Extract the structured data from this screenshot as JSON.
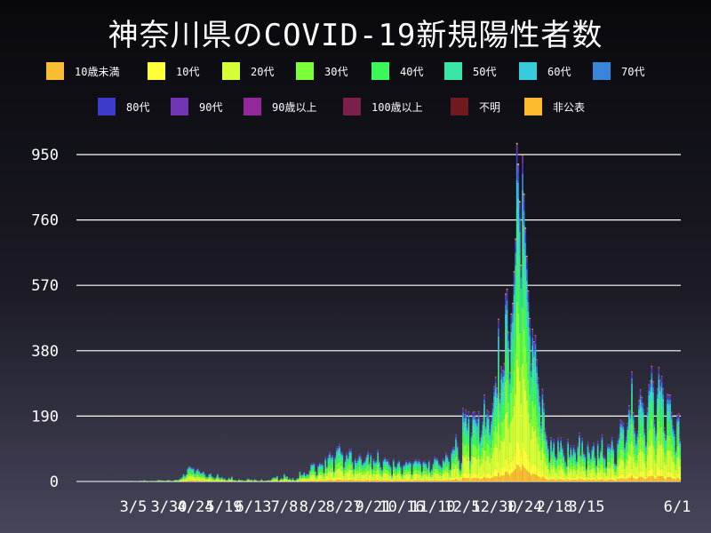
{
  "chart_data": {
    "type": "bar",
    "stacked": true,
    "title": "神奈川県のCOVID-19新規陽性者数",
    "xlabel": "",
    "ylabel": "",
    "ylim": [
      0,
      980
    ],
    "yticks": [
      0,
      190,
      380,
      570,
      760,
      950
    ],
    "grid": "horizontal",
    "legend_position": "top",
    "x_tick_labels": [
      "3/5",
      "3/30",
      "4/24",
      "5/19",
      "6/13",
      "7/8",
      "8/2",
      "8/27",
      "9/21",
      "10/16",
      "11/10",
      "12/5",
      "12/30",
      "1/24",
      "2/18",
      "3/15",
      "6/1"
    ],
    "series": [
      {
        "name": "10歳未満",
        "color": "#f9bc33"
      },
      {
        "name": "10代",
        "color": "#ffff39"
      },
      {
        "name": "20代",
        "color": "#d7ff36"
      },
      {
        "name": "30代",
        "color": "#7dfe38"
      },
      {
        "name": "40代",
        "color": "#3bf759"
      },
      {
        "name": "50代",
        "color": "#39e5a6"
      },
      {
        "name": "60代",
        "color": "#37ccdc"
      },
      {
        "name": "70代",
        "color": "#3a84dc"
      },
      {
        "name": "80代",
        "color": "#3b3ccb"
      },
      {
        "name": "90代",
        "color": "#7135b3"
      },
      {
        "name": "90歳以上",
        "color": "#912a98"
      },
      {
        "name": "100歳以上",
        "color": "#7b1f4d"
      },
      {
        "name": "不明",
        "color": "#6e1a1e"
      },
      {
        "name": "非公表",
        "color": "#fbbb2c"
      }
    ],
    "shares": [
      0.05,
      0.07,
      0.24,
      0.17,
      0.15,
      0.13,
      0.08,
      0.05,
      0.03,
      0.02,
      0.005,
      0.0,
      0.0,
      0.005
    ],
    "daily_totals": [
      0,
      0,
      0,
      0,
      0,
      0,
      0,
      0,
      0,
      0,
      0,
      0,
      0,
      0,
      0,
      0,
      0,
      0,
      0,
      0,
      0,
      0,
      0,
      0,
      0,
      0,
      0,
      0,
      0,
      0,
      0,
      0,
      0,
      0,
      0,
      0,
      0,
      0,
      0,
      0,
      1,
      1,
      1,
      1,
      2,
      3,
      1,
      4,
      3,
      2,
      1,
      1,
      1,
      2,
      1,
      2,
      2,
      5,
      4,
      4,
      3,
      3,
      2,
      3,
      5,
      4,
      2,
      1,
      3,
      5,
      6,
      4,
      7,
      10,
      14,
      23,
      17,
      22,
      40,
      46,
      43,
      40,
      40,
      26,
      34,
      39,
      32,
      26,
      27,
      30,
      22,
      15,
      14,
      22,
      25,
      16,
      13,
      9,
      15,
      23,
      13,
      11,
      14,
      9,
      10,
      5,
      6,
      12,
      8,
      15,
      5,
      5,
      4,
      0,
      7,
      4,
      5,
      3,
      3,
      2,
      8,
      8,
      5,
      6,
      1,
      7,
      5,
      0,
      2,
      1,
      7,
      2,
      1,
      3,
      3,
      5,
      3,
      7,
      12,
      13,
      12,
      17,
      2,
      7,
      11,
      8,
      23,
      15,
      16,
      7,
      10,
      5,
      11,
      5,
      4,
      10,
      10,
      31,
      20,
      21,
      28,
      18,
      24,
      22,
      34,
      52,
      53,
      55,
      32,
      20,
      48,
      55,
      52,
      53,
      27,
      70,
      45,
      75,
      87,
      74,
      77,
      32,
      75,
      98,
      103,
      109,
      89,
      84,
      44,
      64,
      84,
      72,
      95,
      94,
      61,
      39,
      68,
      58,
      67,
      80,
      72,
      53,
      58,
      63,
      77,
      88,
      56,
      82,
      39,
      67,
      59,
      62,
      93,
      62,
      44,
      36,
      65,
      71,
      64,
      64,
      53,
      46,
      20,
      66,
      47,
      43,
      57,
      62,
      46,
      23,
      49,
      51,
      61,
      54,
      60,
      58,
      23,
      57,
      63,
      65,
      59,
      64,
      56,
      30,
      60,
      59,
      55,
      42,
      63,
      31,
      38,
      55,
      72,
      69,
      67,
      54,
      49,
      44,
      67,
      63,
      84,
      77,
      64,
      38,
      90,
      100,
      101,
      137,
      109,
      68,
      36,
      58,
      213,
      195,
      208,
      167,
      203,
      66,
      142,
      202,
      203,
      190,
      181,
      204,
      125,
      145,
      185,
      253,
      171,
      209,
      203,
      151,
      187,
      226,
      277,
      305,
      273,
      473,
      256,
      334,
      324,
      344,
      546,
      560,
      435,
      318,
      488,
      519,
      611,
      706,
      984,
      924,
      815,
      630,
      952,
      837,
      738,
      656,
      555,
      475,
      342,
      444,
      407,
      425,
      355,
      301,
      246,
      173,
      269,
      226,
      154,
      130,
      103,
      62,
      129,
      97,
      122,
      79,
      70,
      128,
      96,
      127,
      103,
      81,
      63,
      48,
      123,
      77,
      105,
      83,
      105,
      92,
      63,
      109,
      142,
      82,
      126,
      87,
      78,
      38,
      114,
      91,
      71,
      100,
      113,
      75,
      50,
      117,
      74,
      95,
      136,
      76,
      72,
      45,
      107,
      108,
      104,
      129,
      101,
      55,
      51,
      119,
      135,
      179,
      176,
      170,
      106,
      128,
      169,
      222,
      205,
      319,
      201,
      155,
      118,
      147,
      236,
      267,
      245,
      226,
      151,
      113,
      214,
      282,
      293,
      336,
      291,
      178,
      147,
      270,
      332,
      295,
      306,
      270,
      157,
      134,
      254,
      252,
      253,
      202,
      163,
      147,
      94,
      193,
      198,
      124
    ]
  }
}
